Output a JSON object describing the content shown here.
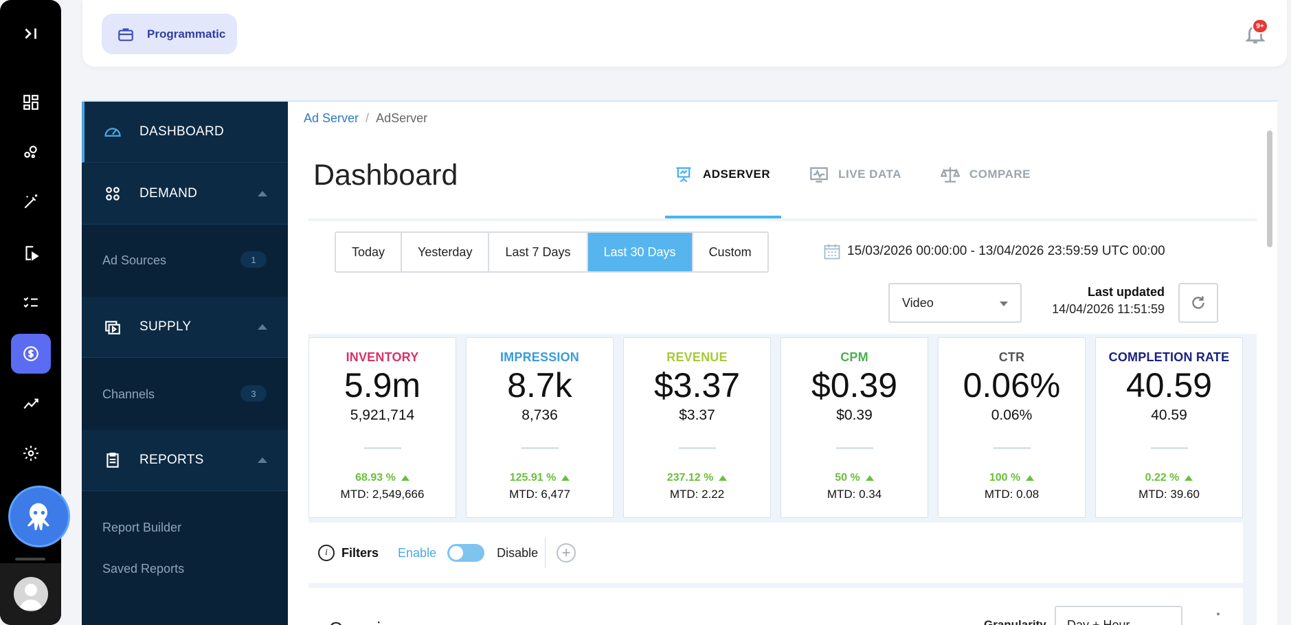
{
  "topbar": {
    "product_label": "Programmatic",
    "notification_badge": "9+"
  },
  "rail": {
    "icons": [
      "collapse-icon",
      "dashboard-grid-icon",
      "bubbles-icon",
      "magic-wand-icon",
      "mobile-play-icon",
      "checklist-icon",
      "dollar-icon",
      "analytics-icon",
      "gear-icon"
    ],
    "active_color": "#5b6bf2"
  },
  "subnav": {
    "dashboard": "DASHBOARD",
    "demand": "DEMAND",
    "ad_sources": "Ad Sources",
    "ad_sources_count": "1",
    "supply": "SUPPLY",
    "channels": "Channels",
    "channels_count": "3",
    "reports": "REPORTS",
    "report_builder": "Report Builder",
    "saved_reports": "Saved Reports"
  },
  "breadcrumb": {
    "root": "Ad Server",
    "sep": "/",
    "current": "AdServer"
  },
  "page_title": "Dashboard",
  "tabs": [
    {
      "label": "ADSERVER",
      "active": true
    },
    {
      "label": "LIVE DATA",
      "active": false
    },
    {
      "label": "COMPARE",
      "active": false
    }
  ],
  "date_buttons": [
    {
      "label": "Today",
      "active": false
    },
    {
      "label": "Yesterday",
      "active": false
    },
    {
      "label": "Last 7 Days",
      "active": false
    },
    {
      "label": "Last 30 Days",
      "active": true
    },
    {
      "label": "Custom",
      "active": false
    }
  ],
  "date_range": "15/03/2026 00:00:00 - 13/04/2026 23:59:59 UTC 00:00",
  "media_select": "Video",
  "last_updated_label": "Last updated",
  "last_updated_value": "14/04/2026 11:51:59",
  "metrics": [
    {
      "name": "INVENTORY",
      "color": "#d6336c",
      "big": "5.9m",
      "exact": "5,921,714",
      "pct": "68.93 %",
      "mtd": "MTD: 2,549,666"
    },
    {
      "name": "IMPRESSION",
      "color": "#3a9bd9",
      "big": "8.7k",
      "exact": "8,736",
      "pct": "125.91 %",
      "mtd": "MTD: 6,477"
    },
    {
      "name": "REVENUE",
      "color": "#a8c93a",
      "big": "$3.37",
      "exact": "$3.37",
      "pct": "237.12 %",
      "mtd": "MTD: 2.22"
    },
    {
      "name": "CPM",
      "color": "#4caf50",
      "big": "$0.39",
      "exact": "$0.39",
      "pct": "50 %",
      "mtd": "MTD: 0.34"
    },
    {
      "name": "CTR",
      "color": "#555555",
      "big": "0.06%",
      "exact": "0.06%",
      "pct": "100 %",
      "mtd": "MTD: 0.08"
    },
    {
      "name": "COMPLETION RATE",
      "color": "#1a237e",
      "big": "40.59",
      "exact": "40.59",
      "pct": "0.22 %",
      "mtd": "MTD: 39.60"
    }
  ],
  "filters": {
    "label": "Filters",
    "enable": "Enable",
    "disable": "Disable"
  },
  "overview": {
    "title": "Overview",
    "granularity": "Granularity",
    "granularity_value": "Day + Hour"
  }
}
